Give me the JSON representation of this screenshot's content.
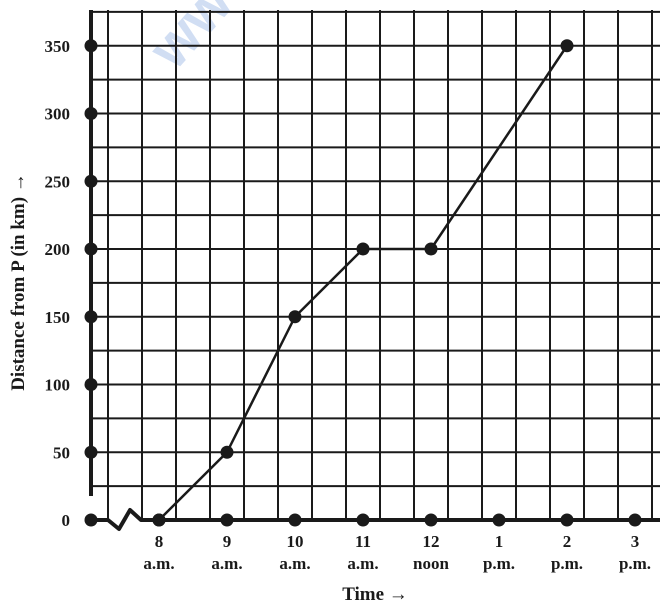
{
  "chart_data": {
    "type": "line",
    "xlabel": "Time →",
    "ylabel": "Distance from P (in km) →",
    "x_ticks": [
      {
        "value": 8,
        "line1": "8",
        "line2": "a.m."
      },
      {
        "value": 9,
        "line1": "9",
        "line2": "a.m."
      },
      {
        "value": 10,
        "line1": "10",
        "line2": "a.m."
      },
      {
        "value": 11,
        "line1": "11",
        "line2": "a.m."
      },
      {
        "value": 12,
        "line1": "12",
        "line2": "noon"
      },
      {
        "value": 13,
        "line1": "1",
        "line2": "p.m."
      },
      {
        "value": 14,
        "line1": "2",
        "line2": "p.m."
      },
      {
        "value": 15,
        "line1": "3",
        "line2": "p.m."
      }
    ],
    "y_ticks": [
      {
        "value": 0,
        "label": "0"
      },
      {
        "value": 50,
        "label": "50"
      },
      {
        "value": 100,
        "label": "100"
      },
      {
        "value": 150,
        "label": "150"
      },
      {
        "value": 200,
        "label": "200"
      },
      {
        "value": 250,
        "label": "250"
      },
      {
        "value": 300,
        "label": "300"
      },
      {
        "value": 350,
        "label": "350"
      }
    ],
    "xlim": [
      7,
      15.3
    ],
    "ylim": [
      0,
      375
    ],
    "grid": true,
    "axis_break": true,
    "watermark": "www",
    "series": [
      {
        "x": [
          8,
          9,
          10,
          11,
          12,
          14
        ],
        "y": [
          0,
          50,
          150,
          200,
          200,
          350
        ]
      }
    ],
    "colors": {
      "line": "#1a1a1a",
      "grid": "#1a1a1a",
      "watermark": "#c9d9f2"
    }
  }
}
